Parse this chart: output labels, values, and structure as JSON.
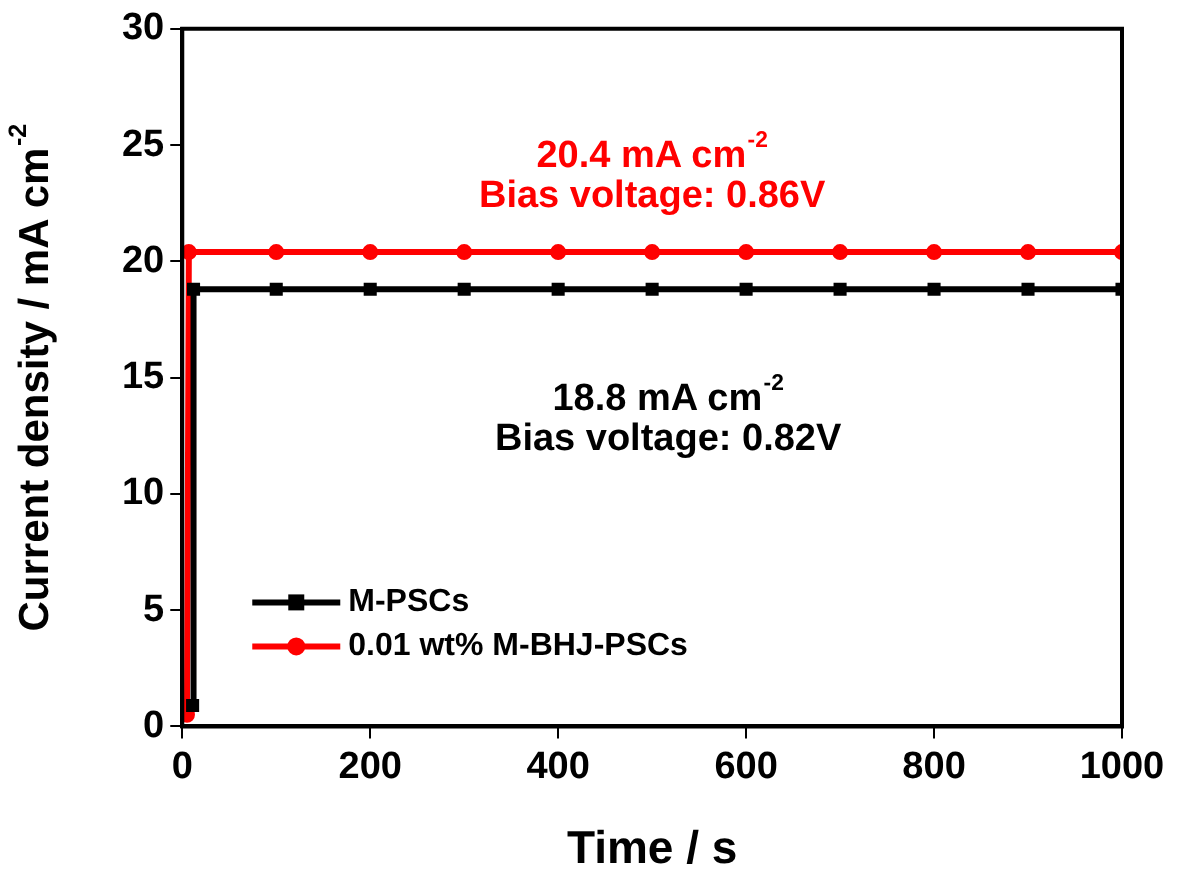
{
  "chart_data": {
    "type": "line",
    "xlabel": "Time / s",
    "ylabel": "Current density / mA cm$^{-2}$",
    "xlim": [
      0,
      1000
    ],
    "xticks": [
      0,
      200,
      400,
      600,
      800,
      1000
    ],
    "ylim": [
      0,
      30
    ],
    "yticks": [
      0,
      5,
      10,
      15,
      20,
      25,
      30
    ],
    "grid": false,
    "legend": "bottom left",
    "line_style": "solid",
    "series": [
      {
        "name": "M-PSCs",
        "color": "#000000",
        "marker": "square",
        "x": [
          11,
          12,
          100,
          200,
          300,
          400,
          500,
          600,
          700,
          800,
          900,
          1000
        ],
        "values": [
          0.9,
          18.8,
          18.8,
          18.8,
          18.8,
          18.8,
          18.8,
          18.8,
          18.8,
          18.8,
          18.8,
          18.8
        ]
      },
      {
        "name": "0.01 wt% M-BHJ-PSCs",
        "color": "#ff0000",
        "marker": "circle",
        "x": [
          5,
          7,
          100,
          200,
          300,
          400,
          500,
          600,
          700,
          800,
          900,
          1000
        ],
        "values": [
          0.5,
          20.4,
          20.4,
          20.4,
          20.4,
          20.4,
          20.4,
          20.4,
          20.4,
          20.4,
          20.4,
          20.4
        ]
      }
    ],
    "annotations": [
      "20.4 mA cm$^{-2}$",
      "Bias voltage: 0.86V",
      "18.8 mA cm$^{-2}$",
      "Bias voltage: 0.82V"
    ]
  }
}
